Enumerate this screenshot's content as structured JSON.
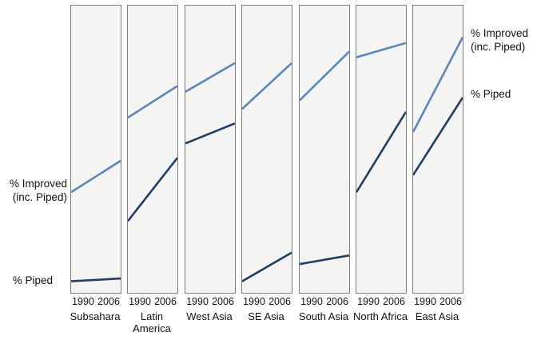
{
  "annotations": {
    "improved_line1": "% Improved",
    "improved_line2": "(inc. Piped)",
    "piped": "% Piped"
  },
  "chart_data": {
    "type": "line",
    "subtype": "small-multiples-slopegraph",
    "title": "",
    "xlabel": "",
    "ylabel": "",
    "grid": false,
    "legend_position": "outer-left-and-right",
    "x": [
      1990,
      2006
    ],
    "years": [
      "1990",
      "2006"
    ],
    "ylim": [
      0,
      100
    ],
    "series_names": [
      "% Improved (inc. Piped)",
      "% Piped"
    ],
    "colors": {
      "improved": "#5b85bd",
      "piped": "#1e3e66"
    },
    "panel_background": "#f4f4f2",
    "panel_border": "#7d7d7d",
    "panels": [
      {
        "region": "Subsahara",
        "region_lines": [
          "Subsahara"
        ],
        "improved": [
          35,
          46
        ],
        "piped": [
          4,
          5
        ]
      },
      {
        "region": "Latin America",
        "region_lines": [
          "Latin",
          "America"
        ],
        "improved": [
          61,
          72
        ],
        "piped": [
          25,
          47
        ]
      },
      {
        "region": "West Asia",
        "region_lines": [
          "West Asia"
        ],
        "improved": [
          70,
          80
        ],
        "piped": [
          52,
          59
        ]
      },
      {
        "region": "SE Asia",
        "region_lines": [
          "SE Asia"
        ],
        "improved": [
          64,
          80
        ],
        "piped": [
          4,
          14
        ]
      },
      {
        "region": "South Asia",
        "region_lines": [
          "South Asia"
        ],
        "improved": [
          67,
          84
        ],
        "piped": [
          10,
          13
        ]
      },
      {
        "region": "North Africa",
        "region_lines": [
          "North Africa"
        ],
        "improved": [
          82,
          87
        ],
        "piped": [
          35,
          63
        ]
      },
      {
        "region": "East Asia",
        "region_lines": [
          "East Asia"
        ],
        "improved": [
          56,
          89
        ],
        "piped": [
          41,
          68
        ]
      }
    ]
  }
}
